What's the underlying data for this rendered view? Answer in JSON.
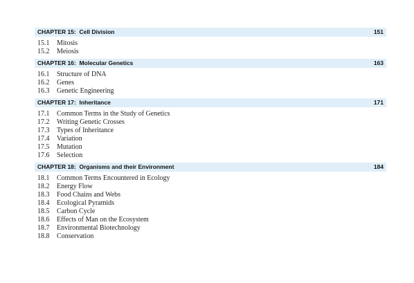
{
  "chapters": [
    {
      "title": "CHAPTER 15:  Cell Division",
      "page": "151",
      "sections": [
        {
          "num": "15.1",
          "title": "Mitosis"
        },
        {
          "num": "15.2",
          "title": "Meiosis"
        }
      ]
    },
    {
      "title": "CHAPTER 16:  Molecular Genetics",
      "page": "163",
      "sections": [
        {
          "num": "16.1",
          "title": "Structure of DNA"
        },
        {
          "num": "16.2",
          "title": "Genes"
        },
        {
          "num": "16.3",
          "title": "Genetic Engineering"
        }
      ]
    },
    {
      "title": "CHAPTER 17:  Inheritance",
      "page": "171",
      "sections": [
        {
          "num": "17.1",
          "title": "Common Terms in the Study of Genetics"
        },
        {
          "num": "17.2",
          "title": "Writing Genetic Crosses"
        },
        {
          "num": "17.3",
          "title": "Types of Inheritance"
        },
        {
          "num": "17.4",
          "title": "Variation"
        },
        {
          "num": "17.5",
          "title": "Mutation"
        },
        {
          "num": "17.6",
          "title": "Selection"
        }
      ]
    },
    {
      "title": "CHAPTER 18:  Organisms and their Environment",
      "page": "184",
      "sections": [
        {
          "num": "18.1",
          "title": "Common Terms Encountered in Ecology"
        },
        {
          "num": "18.2",
          "title": "Energy Flow"
        },
        {
          "num": "18.3",
          "title": "Food Chains and Webs"
        },
        {
          "num": "18.4",
          "title": "Ecological Pyramids"
        },
        {
          "num": "18.5",
          "title": "Carbon Cycle"
        },
        {
          "num": "18.6",
          "title": "Effects of Man on the Ecosystem"
        },
        {
          "num": "18.7",
          "title": "Environmental Biotechnology"
        },
        {
          "num": "18.8",
          "title": "Conservation"
        }
      ]
    }
  ]
}
